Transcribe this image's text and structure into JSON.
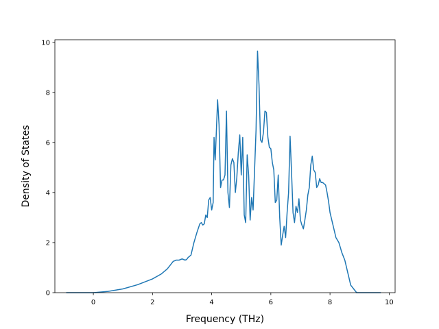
{
  "chart_data": {
    "type": "line",
    "title": "",
    "xlabel": "Frequency (THz)",
    "ylabel": "Density of States",
    "xlim": [
      -1.3,
      10.2
    ],
    "ylim": [
      0,
      10.1
    ],
    "x_ticks": [
      0,
      2,
      4,
      6,
      8,
      10
    ],
    "y_ticks": [
      0,
      2,
      4,
      6,
      8,
      10
    ],
    "grid": false,
    "legend": "none",
    "series": [
      {
        "color": "#1f77b4",
        "x": [
          -0.9,
          0.0,
          0.5,
          1.0,
          1.5,
          2.0,
          2.3,
          2.5,
          2.6,
          2.7,
          2.8,
          2.9,
          3.0,
          3.1,
          3.15,
          3.2,
          3.3,
          3.4,
          3.5,
          3.6,
          3.65,
          3.7,
          3.75,
          3.8,
          3.85,
          3.9,
          3.95,
          4.0,
          4.05,
          4.08,
          4.12,
          4.2,
          4.25,
          4.3,
          4.35,
          4.4,
          4.45,
          4.5,
          4.55,
          4.6,
          4.65,
          4.7,
          4.75,
          4.8,
          4.85,
          4.9,
          4.95,
          5.0,
          5.05,
          5.1,
          5.15,
          5.2,
          5.25,
          5.3,
          5.35,
          5.4,
          5.5,
          5.55,
          5.6,
          5.65,
          5.7,
          5.75,
          5.8,
          5.85,
          5.9,
          5.95,
          6.0,
          6.05,
          6.1,
          6.15,
          6.2,
          6.25,
          6.3,
          6.35,
          6.4,
          6.45,
          6.5,
          6.55,
          6.6,
          6.65,
          6.7,
          6.75,
          6.8,
          6.85,
          6.9,
          6.95,
          7.0,
          7.05,
          7.1,
          7.15,
          7.2,
          7.25,
          7.3,
          7.35,
          7.4,
          7.45,
          7.5,
          7.55,
          7.6,
          7.65,
          7.7,
          7.75,
          7.8,
          7.85,
          7.9,
          7.95,
          8.0,
          8.1,
          8.2,
          8.3,
          8.4,
          8.5,
          8.6,
          8.7,
          8.8,
          8.9,
          9.0,
          9.7
        ],
        "y": [
          0.0,
          0.0,
          0.05,
          0.15,
          0.32,
          0.55,
          0.75,
          0.95,
          1.1,
          1.25,
          1.3,
          1.3,
          1.35,
          1.3,
          1.32,
          1.4,
          1.5,
          2.0,
          2.4,
          2.75,
          2.8,
          2.7,
          2.75,
          3.1,
          3.0,
          3.7,
          3.8,
          3.3,
          3.6,
          6.2,
          5.3,
          7.7,
          6.7,
          4.2,
          4.5,
          4.5,
          4.7,
          7.25,
          4.0,
          3.4,
          5.1,
          5.35,
          5.2,
          4.0,
          4.6,
          5.6,
          6.3,
          4.7,
          6.2,
          3.1,
          2.8,
          5.5,
          4.7,
          2.9,
          3.8,
          3.3,
          6.5,
          9.65,
          8.3,
          6.1,
          6.0,
          6.4,
          7.25,
          7.2,
          6.2,
          5.8,
          5.75,
          5.2,
          4.9,
          3.6,
          3.7,
          4.7,
          3.0,
          1.9,
          2.3,
          2.65,
          2.2,
          3.2,
          4.0,
          6.25,
          4.8,
          3.2,
          2.8,
          3.45,
          3.2,
          3.75,
          2.9,
          2.7,
          2.55,
          2.9,
          3.3,
          3.9,
          4.2,
          5.1,
          5.45,
          4.9,
          4.8,
          4.2,
          4.3,
          4.55,
          4.4,
          4.4,
          4.35,
          4.3,
          4.0,
          3.65,
          3.2,
          2.7,
          2.2,
          2.0,
          1.6,
          1.3,
          0.8,
          0.3,
          0.15,
          0.0,
          0.0,
          0.0
        ]
      }
    ]
  }
}
